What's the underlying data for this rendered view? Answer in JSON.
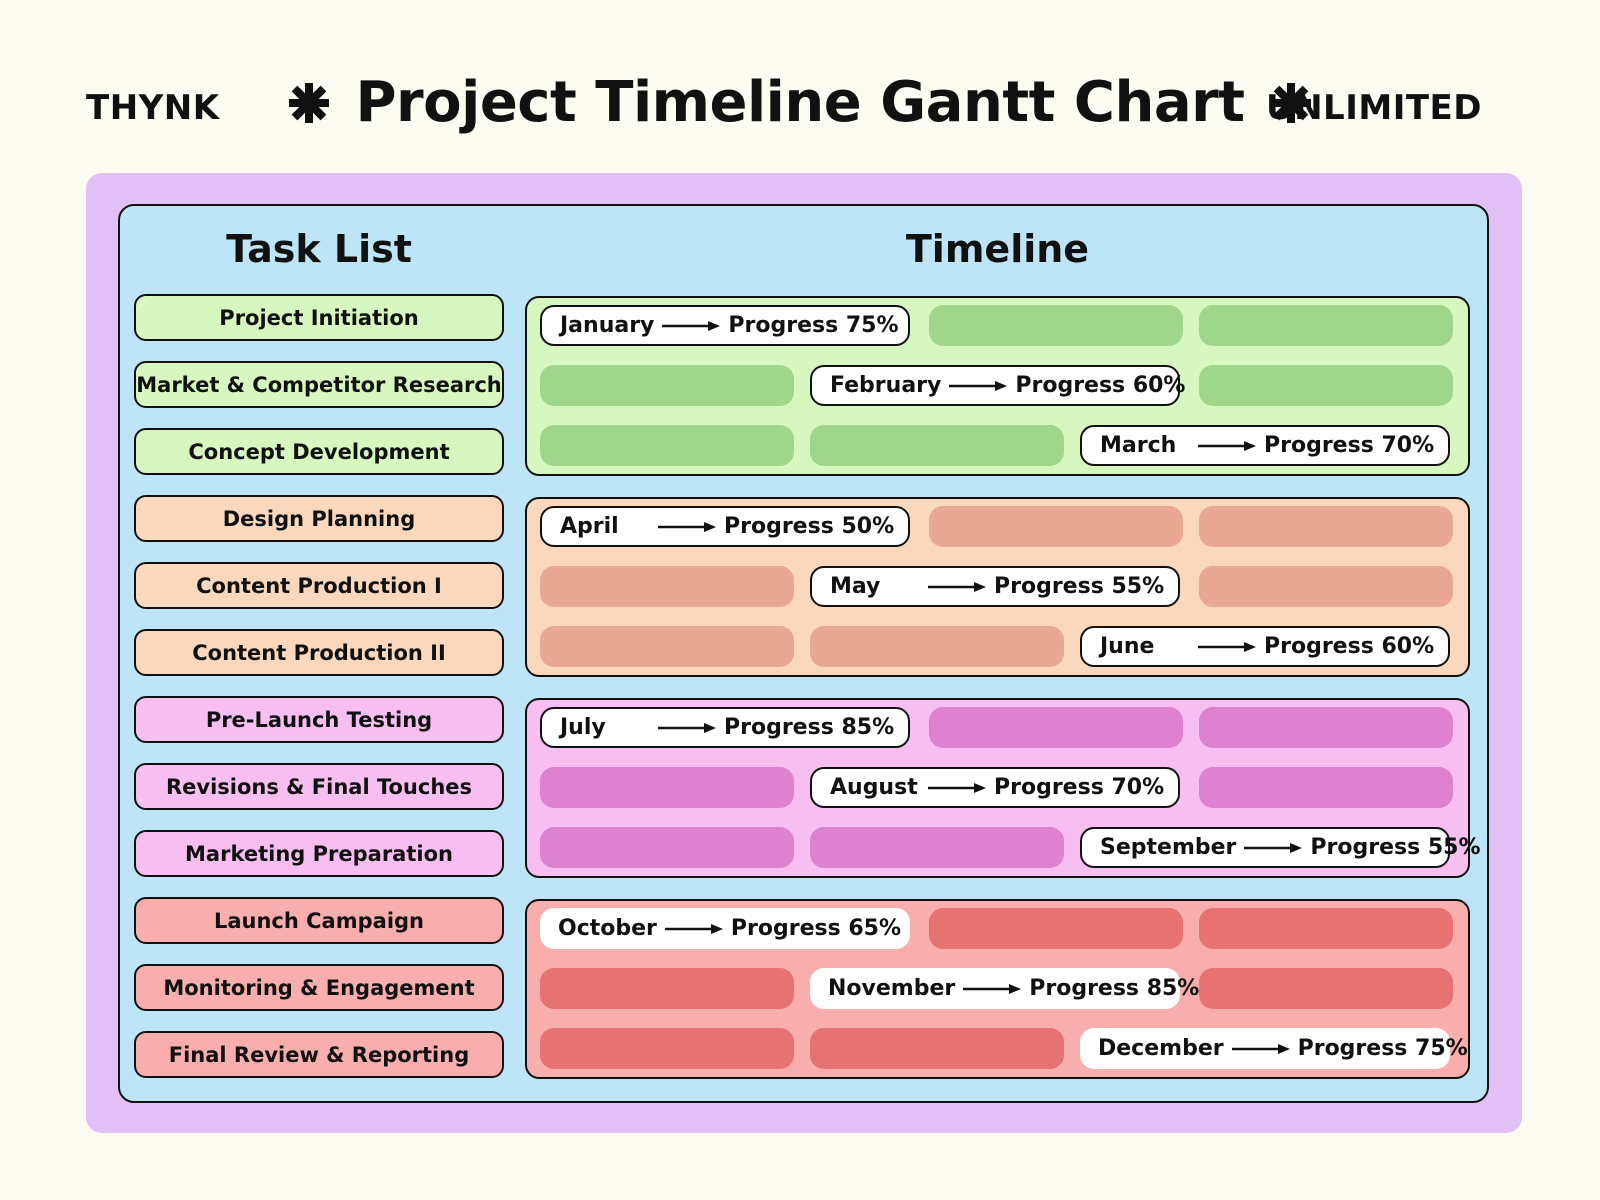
{
  "header": {
    "left_brand": "THYNK",
    "right_brand": "UNLIMITED",
    "title": "Project Timeline Gantt Chart",
    "decoration_icon": "asterisk-icon"
  },
  "columns": {
    "task_list": "Task List",
    "timeline": "Timeline"
  },
  "colors": {
    "page_bg": "#fdfcf2",
    "outer_frame": "#e2c0f6",
    "panel_bg": "#bee5f7",
    "green_light": "#d6f7c0",
    "green_bar": "#a0d68a",
    "peach_light": "#f9d8bd",
    "peach_bar": "#e8a893",
    "pink_light": "#f7bff1",
    "pink_bar": "#de82d0",
    "red_light": "#f9aeae",
    "red_bar": "#e77272"
  },
  "tasks": [
    {
      "label": "Project Initiation"
    },
    {
      "label": "Market & Competitor Research"
    },
    {
      "label": "Concept Development"
    },
    {
      "label": "Design Planning"
    },
    {
      "label": "Content Production I"
    },
    {
      "label": "Content Production II"
    },
    {
      "label": "Pre-Launch Testing"
    },
    {
      "label": "Revisions & Final Touches"
    },
    {
      "label": "Marketing Preparation"
    },
    {
      "label": "Launch Campaign"
    },
    {
      "label": "Monitoring & Engagement"
    },
    {
      "label": "Final Review & Reporting"
    }
  ],
  "timeline": [
    {
      "month": "January",
      "progress": "Progress 75%"
    },
    {
      "month": "February",
      "progress": "Progress 60%"
    },
    {
      "month": "March",
      "progress": "Progress 70%"
    },
    {
      "month": "April",
      "progress": "Progress 50%"
    },
    {
      "month": "May",
      "progress": "Progress 55%"
    },
    {
      "month": "June",
      "progress": "Progress 60%"
    },
    {
      "month": "July",
      "progress": "Progress 85%"
    },
    {
      "month": "August",
      "progress": "Progress 70%"
    },
    {
      "month": "September",
      "progress": "Progress 55%"
    },
    {
      "month": "October",
      "progress": "Progress 65%"
    },
    {
      "month": "November",
      "progress": "Progress 85%"
    },
    {
      "month": "December",
      "progress": "Progress 75%"
    }
  ]
}
